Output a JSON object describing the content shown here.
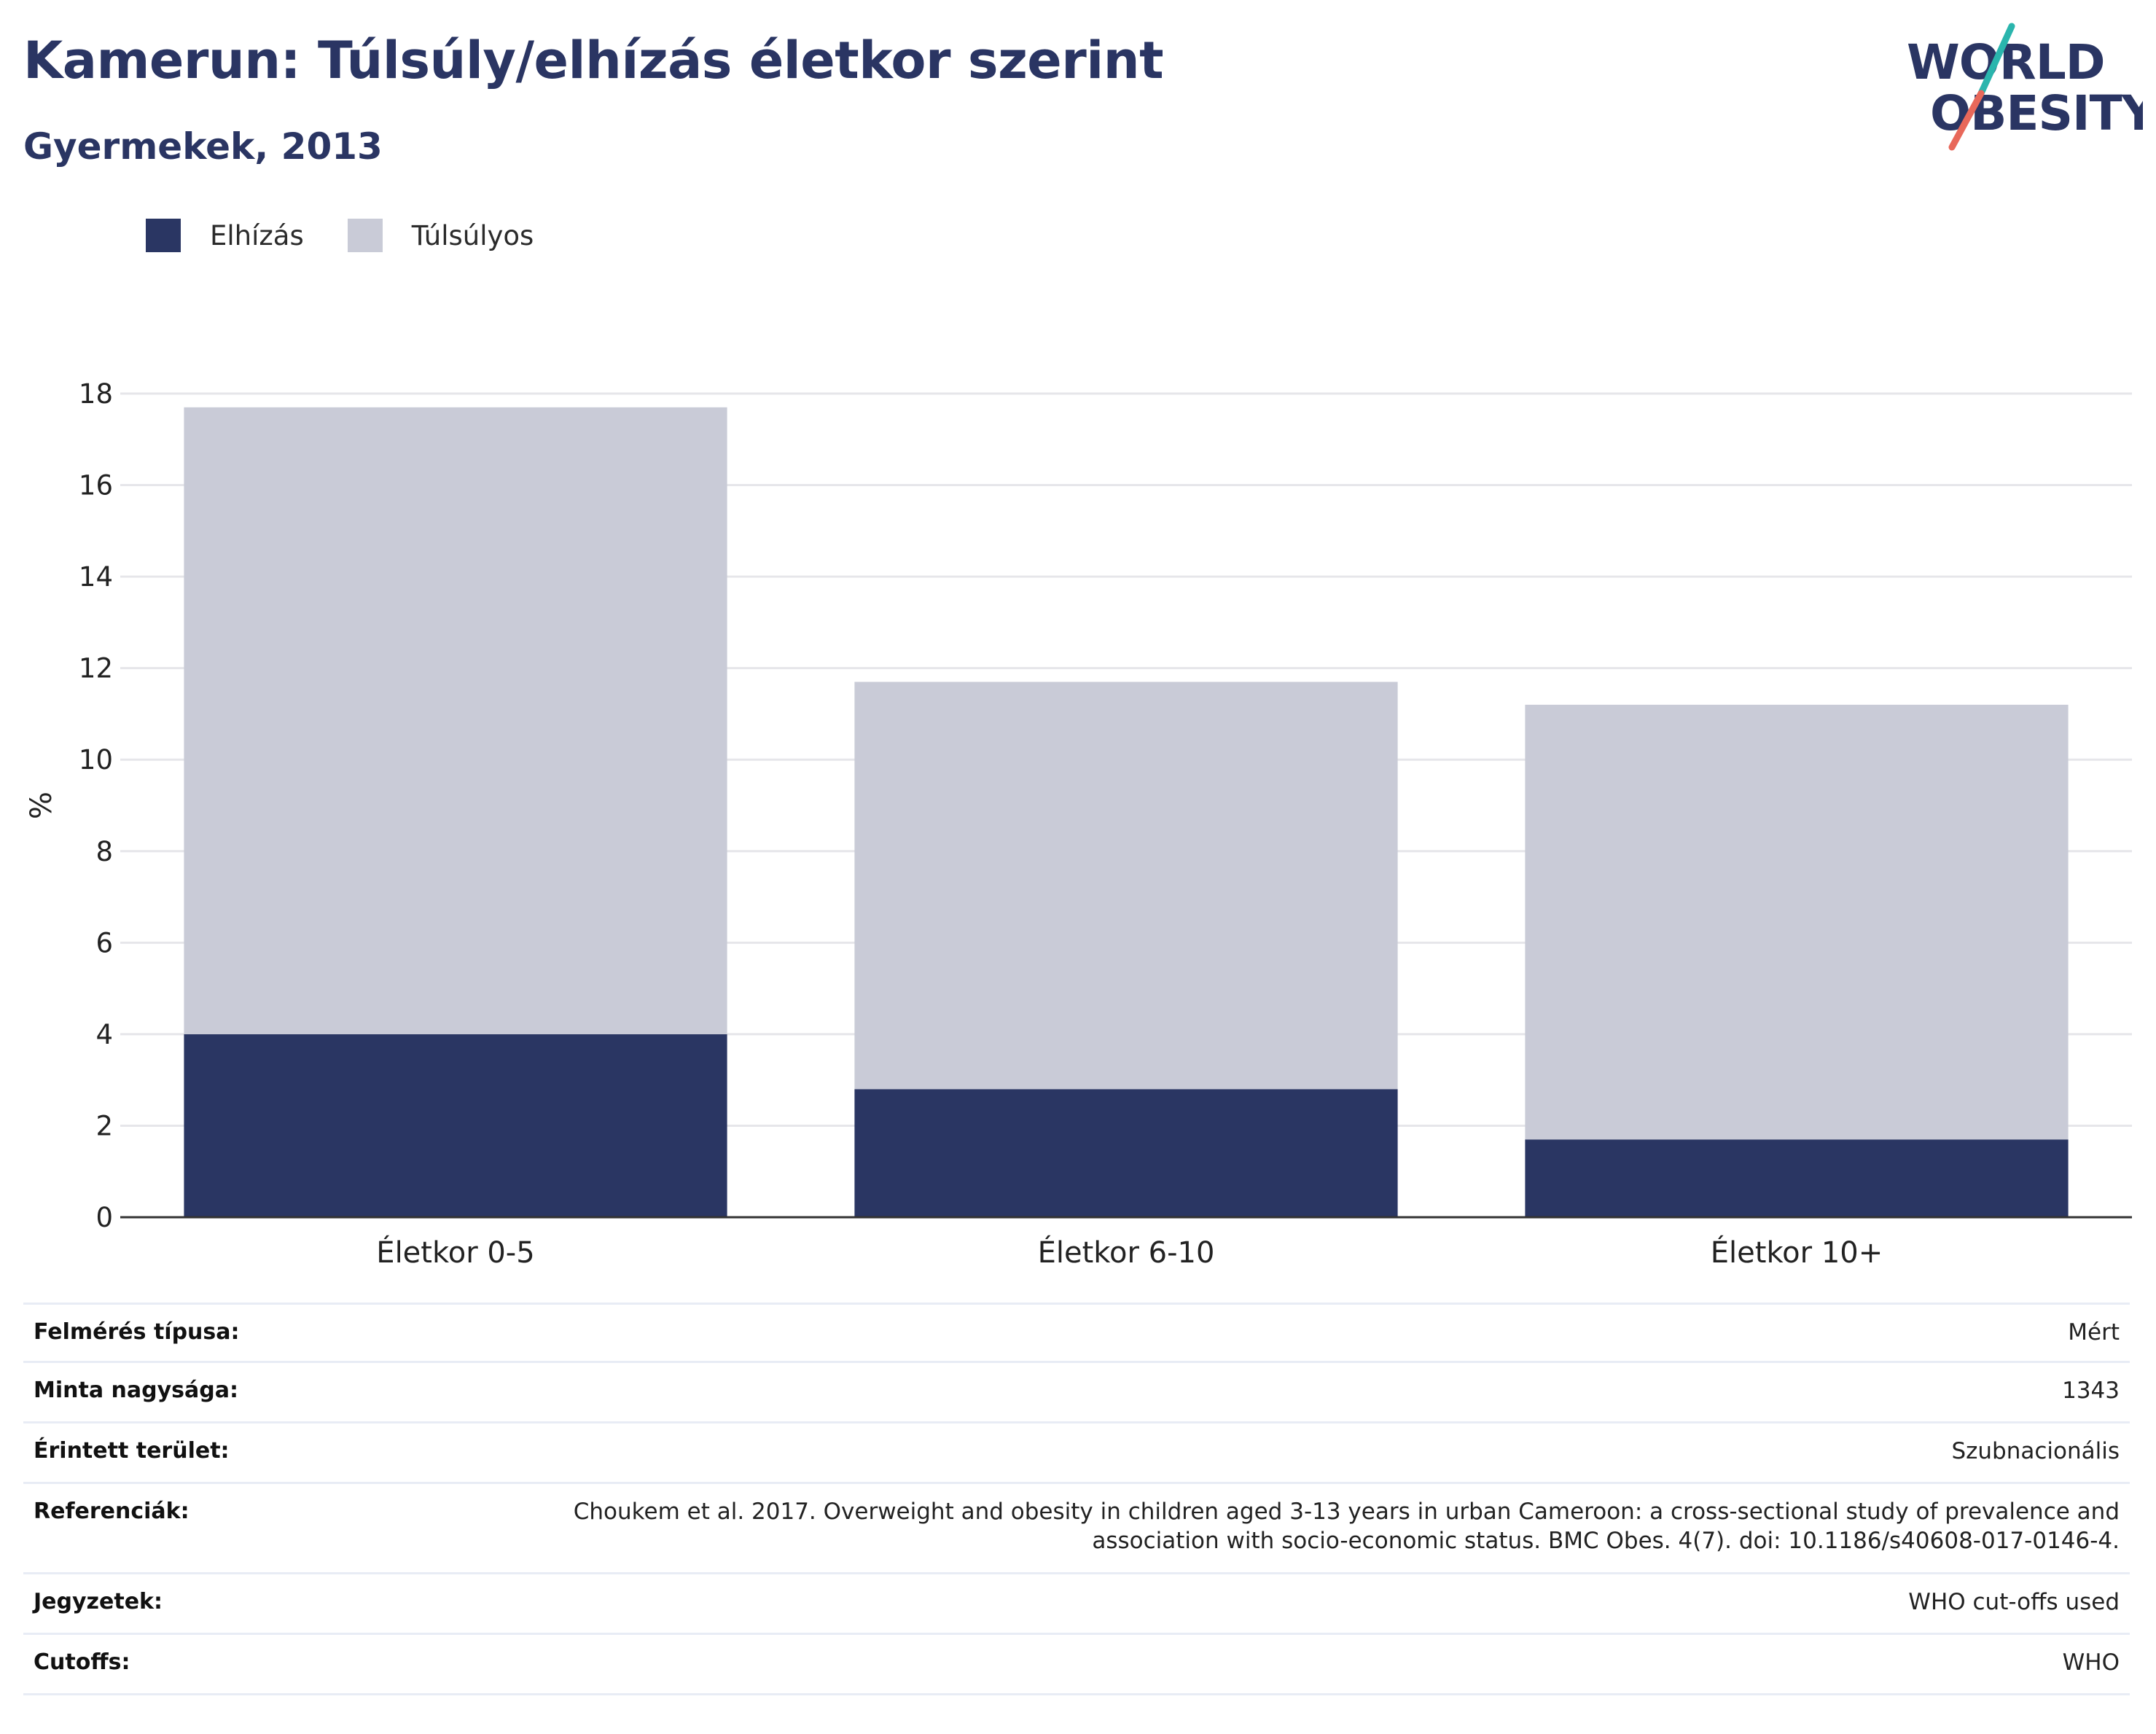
{
  "header": {
    "title": "Kamerun: Túlsúly/elhízás életkor szerint",
    "subtitle": "Gyermekek, 2013"
  },
  "logo": {
    "line1": "WORLD",
    "line2": "OBESITY",
    "colors": {
      "text": "#2a3563",
      "accent_teal": "#2ab5ad",
      "accent_coral": "#e8685a"
    }
  },
  "legend": {
    "items": [
      {
        "label": "Elhízás",
        "color": "#2a3663"
      },
      {
        "label": "Túlsúlyos",
        "color": "#c9cbd7"
      }
    ]
  },
  "chart_data": {
    "type": "bar",
    "stacked": true,
    "categories": [
      "Életkor 0-5",
      "Életkor 6-10",
      "Életkor 10+"
    ],
    "series": [
      {
        "name": "Elhízás",
        "values": [
          4.0,
          2.8,
          1.7
        ],
        "color": "#2a3663"
      },
      {
        "name": "Túlsúlyos",
        "values": [
          13.7,
          8.9,
          9.5
        ],
        "color": "#c9cbd7"
      }
    ],
    "ylabel": "%",
    "xlabel": "",
    "ylim": [
      0,
      18
    ],
    "yticks": [
      0,
      2,
      4,
      6,
      8,
      10,
      12,
      14,
      16,
      18
    ],
    "grid": true,
    "legend_position": "top-left"
  },
  "meta": {
    "rows": [
      {
        "label": "Felmérés típusa:",
        "value": "Mért"
      },
      {
        "label": "Minta nagysága:",
        "value": "1343"
      },
      {
        "label": "Érintett terület:",
        "value": "Szubnacionális"
      },
      {
        "label": "Referenciák:",
        "value": "Choukem et al. 2017. Overweight and obesity in children aged 3-13 years in urban Cameroon: a cross-sectional study of prevalence and association with socio-economic status. BMC Obes. 4(7). doi: 10.1186/s40608-017-0146-4."
      },
      {
        "label": "Jegyzetek:",
        "value": "WHO cut-offs used"
      },
      {
        "label": "Cutoffs:",
        "value": "WHO"
      }
    ]
  }
}
